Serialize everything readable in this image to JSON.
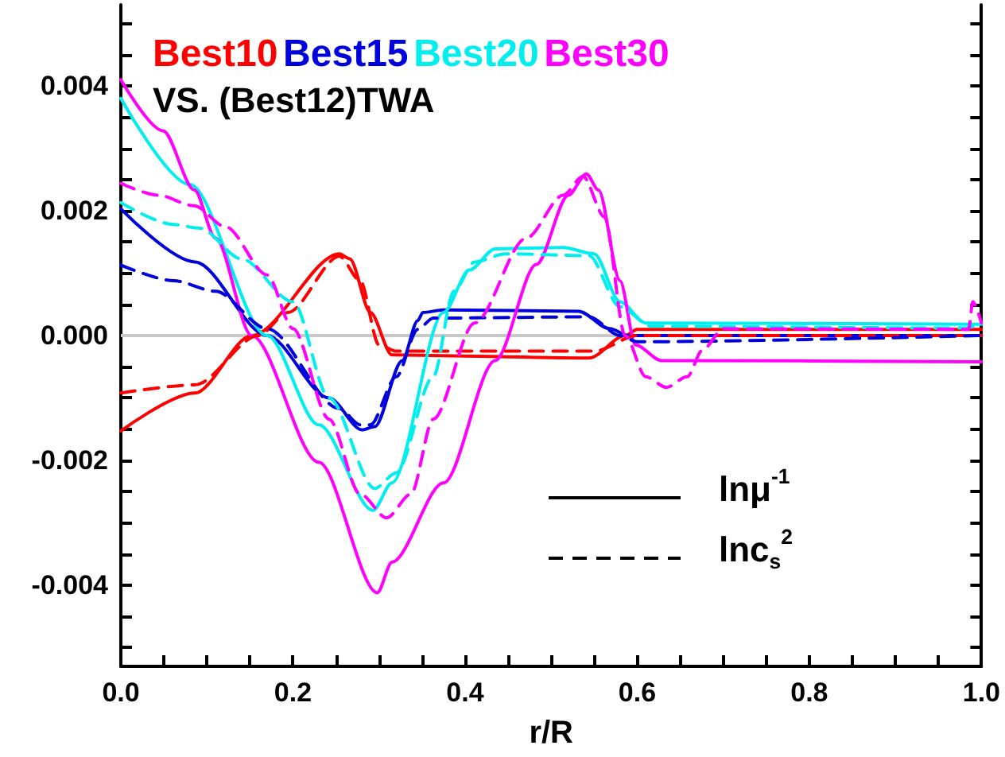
{
  "chart_data": {
    "type": "line",
    "xlabel": "r/R",
    "annotations": [
      "VS. (Best12)TWA",
      "lnμ$^{-1}$",
      "lnc$_{s}$$^{2}$"
    ],
    "xlim": [
      0,
      1
    ],
    "xticks": [
      {
        "value": 0,
        "label": "0.0"
      },
      {
        "value": 0.05,
        "label": null
      },
      {
        "value": 0.1,
        "label": null
      },
      {
        "value": 0.15,
        "label": null
      },
      {
        "value": 0.2,
        "label": "0.2"
      },
      {
        "value": 0.25,
        "label": null
      },
      {
        "value": 0.3,
        "label": null
      },
      {
        "value": 0.35,
        "label": null
      },
      {
        "value": 0.4,
        "label": "0.4"
      },
      {
        "value": 0.45,
        "label": null
      },
      {
        "value": 0.5,
        "label": null
      },
      {
        "value": 0.55,
        "label": null
      },
      {
        "value": 0.6,
        "label": "0.6"
      },
      {
        "value": 0.65,
        "label": null
      },
      {
        "value": 0.7,
        "label": null
      },
      {
        "value": 0.75,
        "label": null
      },
      {
        "value": 0.8,
        "label": "0.8"
      },
      {
        "value": 0.85,
        "label": null
      },
      {
        "value": 0.9,
        "label": null
      },
      {
        "value": 0.95,
        "label": null
      },
      {
        "value": 1,
        "label": "1.0"
      }
    ],
    "ylim": [
      -0.0053,
      0.0053
    ],
    "yticks": [
      {
        "value": -0.005,
        "label": null
      },
      {
        "value": -0.0045,
        "label": null
      },
      {
        "value": -0.004,
        "label": "-0.004"
      },
      {
        "value": -0.0035,
        "label": null
      },
      {
        "value": -0.003,
        "label": null
      },
      {
        "value": -0.0025,
        "label": null
      },
      {
        "value": -0.002,
        "label": "-0.002"
      },
      {
        "value": -0.0015,
        "label": null
      },
      {
        "value": -0.001,
        "label": null
      },
      {
        "value": -0.0005,
        "label": null
      },
      {
        "value": 0,
        "label": "0.000"
      },
      {
        "value": 0.0005,
        "label": null
      },
      {
        "value": 0.001,
        "label": null
      },
      {
        "value": 0.0015,
        "label": null
      },
      {
        "value": 0.002,
        "label": "0.002"
      },
      {
        "value": 0.0025,
        "label": null
      },
      {
        "value": 0.003,
        "label": null
      },
      {
        "value": 0.0035,
        "label": null
      },
      {
        "value": 0.004,
        "label": "0.004"
      },
      {
        "value": 0.0045,
        "label": null
      },
      {
        "value": 0.005,
        "label": null
      }
    ],
    "grid": false,
    "legend": false,
    "marker": "none",
    "ref_lines": [
      {
        "axis": "y",
        "value": 0,
        "color": "#c8c8c8"
      }
    ],
    "series": [
      {
        "name": "Best10",
        "color": "#ff0000",
        "line_style": "solid",
        "x": [
          0,
          0.086,
          0.152,
          0.254,
          0.266,
          0.29,
          0.315,
          0.544,
          0.586,
          0.6,
          1
        ],
        "values": [
          -0.00153,
          -0.00092,
          0,
          0.00131,
          0.00123,
          0.00037,
          -0.00031,
          -0.00036,
          0,
          0.0001,
          0.0001
        ]
      },
      {
        "name": "Best15",
        "color": "#0000dd",
        "line_style": "solid",
        "x": [
          0,
          0.086,
          0.17,
          0.242,
          0.28,
          0.295,
          0.327,
          0.345,
          0.351,
          0.375,
          0.532,
          0.568,
          0.59,
          1
        ],
        "values": [
          0.00203,
          0.00118,
          0,
          -0.001,
          -0.00151,
          -0.00146,
          -0.0004,
          0.00024,
          0.00037,
          0.00041,
          0.00039,
          0.00011,
          0,
          0
        ]
      },
      {
        "name": "Best20",
        "color": "#00eeee",
        "line_style": "solid",
        "x": [
          0,
          0.08,
          0.17,
          0.23,
          0.293,
          0.315,
          0.375,
          0.405,
          0.435,
          0.514,
          0.55,
          0.58,
          0.61,
          1
        ],
        "values": [
          0.0038,
          0.00242,
          0,
          -0.00143,
          -0.0028,
          -0.00236,
          0.00037,
          0.00105,
          0.00139,
          0.00141,
          0.00131,
          0.00054,
          0.0002,
          0.00018
        ]
      },
      {
        "name": "Best30",
        "color": "#ff00ff",
        "line_style": "solid",
        "x": [
          0,
          0.049,
          0.0855,
          0.11,
          0.152,
          0.23,
          0.298,
          0.315,
          0.375,
          0.435,
          0.483,
          0.52,
          0.541,
          0.555,
          0.58,
          0.598,
          0.628,
          1
        ],
        "values": [
          0.0041,
          0.00328,
          0.00233,
          0.00156,
          0,
          -0.00203,
          -0.00412,
          -0.00363,
          -0.00236,
          -0.0004,
          0.00114,
          0.00225,
          0.00259,
          0.00233,
          0.00088,
          -0.00015,
          -0.0004,
          -0.00042
        ]
      },
      {
        "color": "#ff0000",
        "line_style": "dashed",
        "x": [
          0,
          0.086,
          0.16,
          0.194,
          0.254,
          0.278,
          0.3,
          0.32,
          0.55,
          0.6,
          1
        ],
        "values": [
          -0.00092,
          -0.00079,
          0,
          0.00037,
          0.00127,
          0.00088,
          -0.00015,
          -0.00025,
          -0.00025,
          0,
          0
        ]
      },
      {
        "color": "#0000dd",
        "line_style": "dashed",
        "x": [
          0,
          0.061,
          0.11,
          0.17,
          0.254,
          0.278,
          0.29,
          0.32,
          0.345,
          0.363,
          0.544,
          0.58,
          0.6,
          1
        ],
        "values": [
          0.00113,
          0.00088,
          0.00071,
          0.00011,
          -0.00117,
          -0.00143,
          -0.00143,
          -0.00066,
          0.0001,
          0.00028,
          0.0003,
          0,
          -0.0001,
          0
        ]
      },
      {
        "color": "#00eeee",
        "line_style": "dashed",
        "x": [
          0,
          0.061,
          0.092,
          0.14,
          0.2,
          0.242,
          0.295,
          0.32,
          0.363,
          0.387,
          0.411,
          0.447,
          0.544,
          0.58,
          0.616,
          0.98,
          1
        ],
        "values": [
          0.00213,
          0.00178,
          0.00172,
          0.00123,
          0.00054,
          -0.001,
          -0.00245,
          -0.0022,
          -0.00066,
          0.00071,
          0.00118,
          0.00131,
          0.00128,
          0.00046,
          0.00015,
          0.00012,
          0.00018
        ]
      },
      {
        "color": "#ff00ff",
        "line_style": "dashed",
        "x": [
          0,
          0.043,
          0.085,
          0.122,
          0.17,
          0.2,
          0.242,
          0.278,
          0.309,
          0.337,
          0.363,
          0.411,
          0.471,
          0.514,
          0.537,
          0.562,
          0.586,
          0.61,
          0.634,
          0.658,
          0.676,
          0.7,
          0.985,
          0.99,
          1
        ],
        "values": [
          0.00244,
          0.00225,
          0.00208,
          0.00174,
          0.00097,
          0.00011,
          -0.00134,
          -0.00254,
          -0.00292,
          -0.00254,
          -0.00134,
          0.0002,
          0.00156,
          0.00225,
          0.00255,
          0.0019,
          0,
          -0.00066,
          -0.00083,
          -0.00066,
          -0.00023,
          0.00011,
          0.0001,
          0.00054,
          0.0002
        ]
      }
    ]
  }
}
